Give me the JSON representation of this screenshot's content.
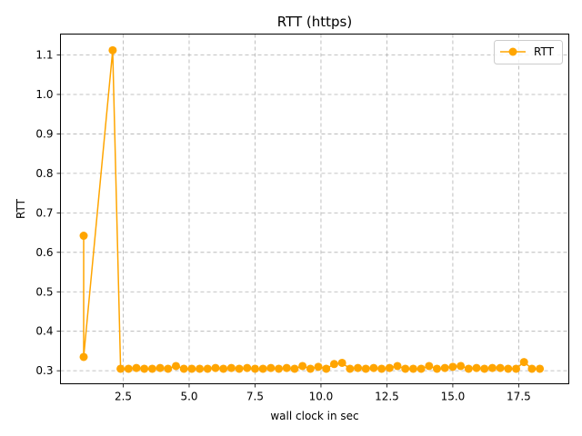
{
  "chart_data": {
    "type": "line",
    "title": "RTT (https)",
    "xlabel": "wall clock in sec",
    "ylabel": "RTT",
    "xlim": [
      0.12,
      19.4
    ],
    "ylim": [
      0.267,
      1.153
    ],
    "xticks": [
      2.5,
      5.0,
      7.5,
      10.0,
      12.5,
      15.0,
      17.5
    ],
    "xtick_labels": [
      "2.5",
      "5.0",
      "7.5",
      "10.0",
      "12.5",
      "15.0",
      "17.5"
    ],
    "yticks": [
      0.3,
      0.4,
      0.5,
      0.6,
      0.7,
      0.8,
      0.9,
      1.0,
      1.1
    ],
    "ytick_labels": [
      "0.3",
      "0.4",
      "0.5",
      "0.6",
      "0.7",
      "0.8",
      "0.9",
      "1.0",
      "1.1"
    ],
    "grid": true,
    "legend_position": "top-right",
    "series": [
      {
        "name": "RTT",
        "color": "#ffa500",
        "marker": "circle",
        "x": [
          1.0,
          1.0,
          2.1,
          2.4,
          2.7,
          3.0,
          3.3,
          3.6,
          3.9,
          4.2,
          4.5,
          4.8,
          5.1,
          5.4,
          5.7,
          6.0,
          6.3,
          6.6,
          6.9,
          7.2,
          7.5,
          7.8,
          8.1,
          8.4,
          8.7,
          9.0,
          9.3,
          9.6,
          9.9,
          10.2,
          10.5,
          10.8,
          11.1,
          11.4,
          11.7,
          12.0,
          12.3,
          12.6,
          12.9,
          13.2,
          13.5,
          13.8,
          14.1,
          14.4,
          14.7,
          15.0,
          15.3,
          15.6,
          15.9,
          16.2,
          16.5,
          16.8,
          17.1,
          17.4,
          17.7,
          18.0,
          18.3
        ],
        "y": [
          0.642,
          0.335,
          1.112,
          0.305,
          0.305,
          0.307,
          0.305,
          0.305,
          0.307,
          0.305,
          0.312,
          0.305,
          0.305,
          0.305,
          0.305,
          0.307,
          0.305,
          0.307,
          0.305,
          0.307,
          0.305,
          0.305,
          0.307,
          0.305,
          0.307,
          0.305,
          0.312,
          0.305,
          0.31,
          0.305,
          0.317,
          0.32,
          0.305,
          0.307,
          0.305,
          0.307,
          0.305,
          0.307,
          0.312,
          0.305,
          0.305,
          0.305,
          0.312,
          0.305,
          0.307,
          0.31,
          0.312,
          0.305,
          0.307,
          0.305,
          0.307,
          0.307,
          0.305,
          0.305,
          0.322,
          0.305,
          0.305
        ]
      }
    ]
  }
}
